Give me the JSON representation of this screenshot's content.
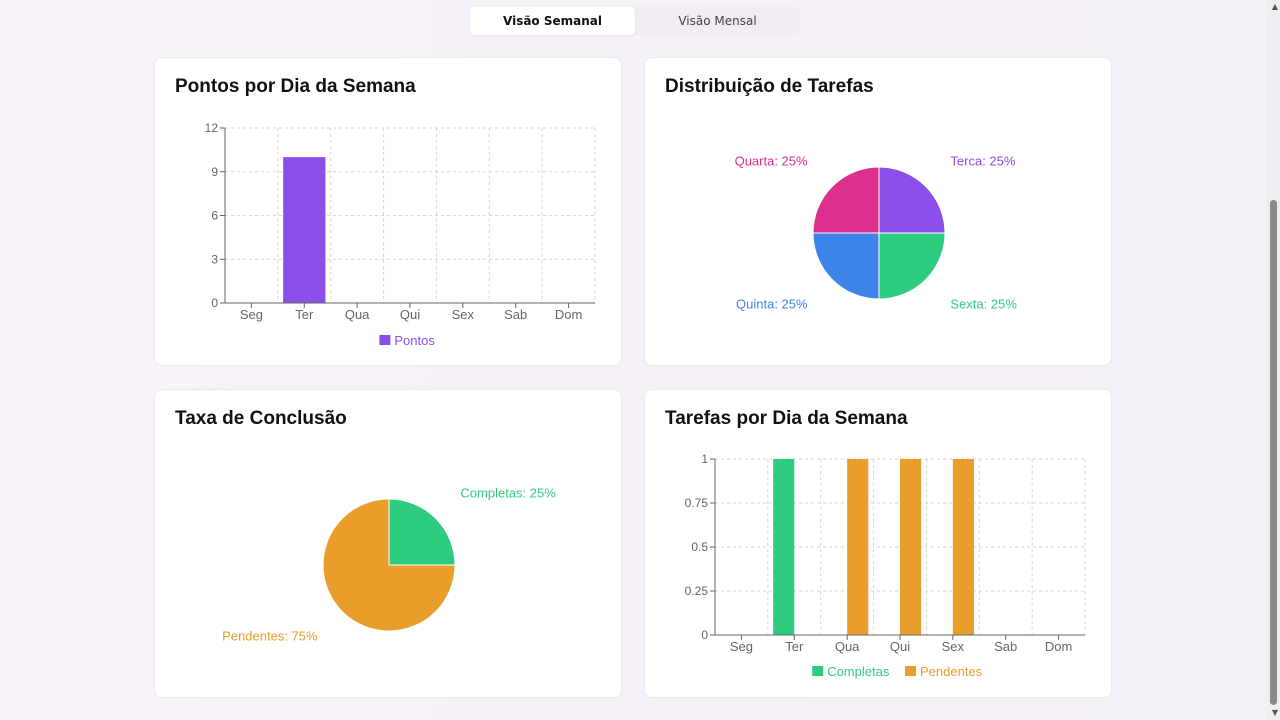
{
  "tabs": [
    {
      "label": "Visão Semanal",
      "active": true
    },
    {
      "label": "Visão Mensal",
      "active": false
    }
  ],
  "cards": {
    "points": {
      "title": "Pontos por Dia da Semana"
    },
    "distribution": {
      "title": "Distribuição de Tarefas"
    },
    "completion": {
      "title": "Taxa de Conclusão"
    },
    "tasks": {
      "title": "Tarefas por Dia da Semana"
    }
  },
  "colors": {
    "purple": "#8a4fe8",
    "pink": "#db2f8d",
    "blue": "#3d84e8",
    "green": "#2ecc7f",
    "orange": "#e99d2a",
    "axis": "#666666",
    "grid": "#d6d6d6"
  },
  "chart_data": [
    {
      "type": "bar",
      "title": "Pontos por Dia da Semana",
      "categories": [
        "Seg",
        "Ter",
        "Qua",
        "Qui",
        "Sex",
        "Sab",
        "Dom"
      ],
      "series": [
        {
          "name": "Pontos",
          "values": [
            0,
            10,
            0,
            0,
            0,
            0,
            0
          ],
          "color": "#8a4fe8"
        }
      ],
      "ylim": [
        0,
        12
      ],
      "yticks": [
        0,
        3,
        6,
        9,
        12
      ],
      "grid": true,
      "legend": "bottom"
    },
    {
      "type": "pie",
      "title": "Distribuição de Tarefas",
      "slices": [
        {
          "name": "Terca",
          "value": 25,
          "label": "Terca: 25%",
          "color": "#8a4fe8"
        },
        {
          "name": "Sexta",
          "value": 25,
          "label": "Sexta: 25%",
          "color": "#2ecc7f"
        },
        {
          "name": "Quinta",
          "value": 25,
          "label": "Quinta: 25%",
          "color": "#3d84e8"
        },
        {
          "name": "Quarta",
          "value": 25,
          "label": "Quarta: 25%",
          "color": "#db2f8d"
        }
      ]
    },
    {
      "type": "pie",
      "title": "Taxa de Conclusão",
      "slices": [
        {
          "name": "Completas",
          "value": 25,
          "label": "Completas: 25%",
          "color": "#2ecc7f"
        },
        {
          "name": "Pendentes",
          "value": 75,
          "label": "Pendentes: 75%",
          "color": "#e99d2a"
        }
      ]
    },
    {
      "type": "bar",
      "title": "Tarefas por Dia da Semana",
      "categories": [
        "Seg",
        "Ter",
        "Qua",
        "Qui",
        "Sex",
        "Sab",
        "Dom"
      ],
      "series": [
        {
          "name": "Completas",
          "values": [
            0,
            1,
            0,
            0,
            0,
            0,
            0
          ],
          "color": "#2ecc7f"
        },
        {
          "name": "Pendentes",
          "values": [
            0,
            0,
            1,
            1,
            1,
            0,
            0
          ],
          "color": "#e99d2a"
        }
      ],
      "ylim": [
        0,
        1
      ],
      "yticks": [
        0,
        0.25,
        0.5,
        0.75,
        1
      ],
      "grid": true,
      "legend": "bottom"
    }
  ]
}
